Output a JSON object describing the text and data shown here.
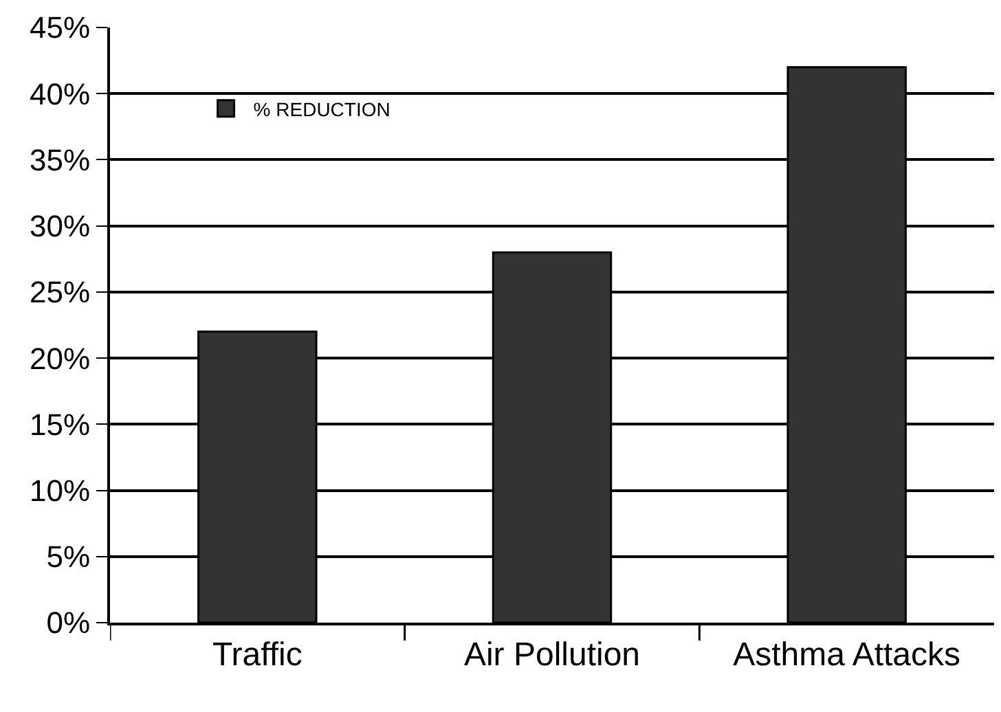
{
  "chart_data": {
    "type": "bar",
    "categories": [
      "Traffic",
      "Air Pollution",
      "Asthma Attacks"
    ],
    "series": [
      {
        "name": "% REDUCTION",
        "color": "#333333",
        "values": [
          22,
          28,
          42
        ]
      }
    ],
    "ylim": [
      0,
      45
    ],
    "yticks": [
      {
        "value": 0,
        "label": "0%"
      },
      {
        "value": 5,
        "label": "5%"
      },
      {
        "value": 10,
        "label": "10%"
      },
      {
        "value": 15,
        "label": "15%"
      },
      {
        "value": 20,
        "label": "20%"
      },
      {
        "value": 25,
        "label": "25%"
      },
      {
        "value": 30,
        "label": "30%"
      },
      {
        "value": 35,
        "label": "35%"
      },
      {
        "value": 40,
        "label": "40%"
      },
      {
        "value": 45,
        "label": "45%"
      }
    ],
    "grid": "y",
    "legend": "top left"
  }
}
